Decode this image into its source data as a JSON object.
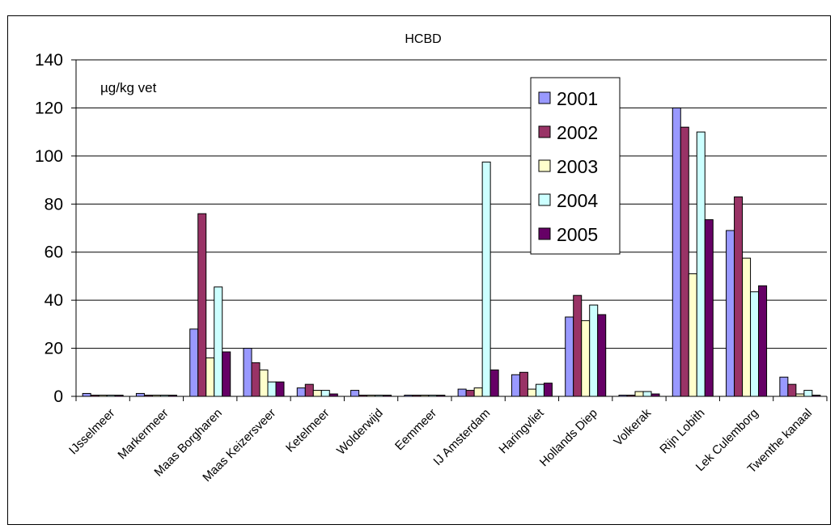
{
  "chart_data": {
    "type": "bar",
    "title": "HCBD",
    "unit_label": "µg/kg vet",
    "xlabel": "",
    "ylabel": "",
    "ylim": [
      0,
      140
    ],
    "yticks": [
      0,
      20,
      40,
      60,
      80,
      100,
      120,
      140
    ],
    "grid": true,
    "legend_position": "top-center",
    "categories": [
      "IJsselmeer",
      "Markermeer",
      "Maas Borgharen",
      "Maas Keizersveer",
      "Ketelmeer",
      "Wolderwijd",
      "Eemmeer",
      "IJ Amsterdam",
      "Haringvliet",
      "Hollands Diep",
      "Volkerak",
      "Rijn Lobith",
      "Lek Culemborg",
      "Twenthe kanaal"
    ],
    "series": [
      {
        "name": "2001",
        "color": "#9999FF",
        "values": [
          1.2,
          1.2,
          28,
          20,
          3.5,
          2.5,
          0.5,
          3,
          9,
          33,
          0.5,
          120,
          69,
          8
        ]
      },
      {
        "name": "2002",
        "color": "#993366",
        "values": [
          0.5,
          0.5,
          76,
          14,
          5,
          0.5,
          0.5,
          2.5,
          10,
          42,
          0.5,
          112,
          83,
          5
        ]
      },
      {
        "name": "2003",
        "color": "#FFFFCC",
        "values": [
          0.5,
          0.5,
          16,
          11,
          2.5,
          0.5,
          0.5,
          3.5,
          3,
          31.5,
          2,
          51,
          57.5,
          1
        ]
      },
      {
        "name": "2004",
        "color": "#CCFFFF",
        "values": [
          0.5,
          0.5,
          45.5,
          6,
          2.5,
          0.5,
          0.5,
          97.5,
          5,
          38,
          2,
          110,
          43.5,
          2.5
        ]
      },
      {
        "name": "2005",
        "color": "#660066",
        "values": [
          0.5,
          0.5,
          18.5,
          6,
          1,
          0.5,
          0.5,
          11,
          5.5,
          34,
          1,
          73.5,
          46,
          0.5
        ]
      }
    ]
  }
}
